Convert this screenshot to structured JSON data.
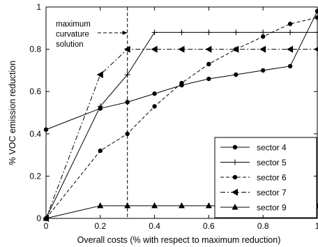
{
  "chart_data": {
    "type": "line",
    "xlabel": "Overall costs (% with respect to maximum reduction)",
    "ylabel": "% VOC emission reduction",
    "xlim": [
      0,
      1
    ],
    "ylim": [
      0,
      1
    ],
    "x_ticks": [
      "0",
      "0.2",
      "0.4",
      "0.6",
      "0.8",
      "1"
    ],
    "y_ticks": [
      "0",
      "0.2",
      "0.4",
      "0.6",
      "0.8",
      "1"
    ],
    "grid": false,
    "legend_position": "bottom-right",
    "annotation": {
      "lines": [
        "maximum",
        "curvature",
        "solution"
      ],
      "x": 0.3
    },
    "series": [
      {
        "name": "sector 4",
        "linestyle": "solid",
        "marker": "dot",
        "x": [
          0,
          0.2,
          0.3,
          0.4,
          0.5,
          0.6,
          0.7,
          0.8,
          0.9,
          1.0
        ],
        "y": [
          0.42,
          0.52,
          0.55,
          0.59,
          0.63,
          0.66,
          0.68,
          0.7,
          0.72,
          0.98
        ]
      },
      {
        "name": "sector 5",
        "linestyle": "solid",
        "marker": "plus",
        "x": [
          0,
          0.2,
          0.3,
          0.4,
          0.5,
          0.6,
          0.7,
          0.8,
          0.9,
          1.0
        ],
        "y": [
          0,
          0.53,
          0.68,
          0.88,
          0.88,
          0.88,
          0.88,
          0.88,
          0.88,
          0.88
        ]
      },
      {
        "name": "sector 6",
        "linestyle": "dashed",
        "marker": "dot",
        "x": [
          0,
          0.2,
          0.3,
          0.4,
          0.5,
          0.6,
          0.7,
          0.8,
          0.9,
          1.0
        ],
        "y": [
          0,
          0.32,
          0.4,
          0.53,
          0.64,
          0.73,
          0.8,
          0.86,
          0.92,
          0.95
        ]
      },
      {
        "name": "sector 7",
        "linestyle": "dashdot",
        "marker": "triangle-left",
        "x": [
          0,
          0.2,
          0.3,
          0.4,
          0.5,
          0.6,
          0.7,
          0.8,
          0.9,
          1.0
        ],
        "y": [
          0,
          0.68,
          0.8,
          0.8,
          0.8,
          0.8,
          0.8,
          0.8,
          0.8,
          0.8
        ]
      },
      {
        "name": "sector 9",
        "linestyle": "solid",
        "marker": "triangle-up",
        "x": [
          0,
          0.2,
          0.3,
          0.4,
          0.5,
          0.6,
          0.7,
          0.8,
          0.9,
          1.0
        ],
        "y": [
          0,
          0.06,
          0.06,
          0.06,
          0.06,
          0.06,
          0.06,
          0.06,
          0.06,
          0.06
        ]
      }
    ]
  }
}
